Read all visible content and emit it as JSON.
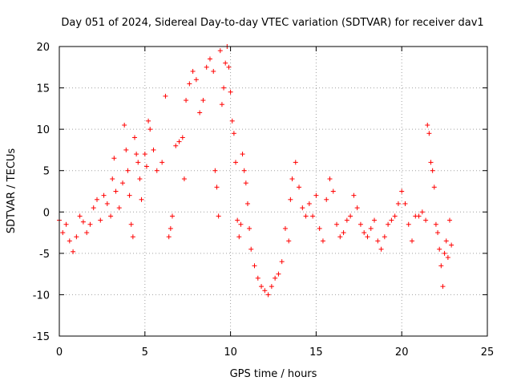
{
  "chart_data": {
    "type": "scatter",
    "title": "Day 051 of 2024, Sidereal Day-to-day VTEC variation (SDTVAR) for receiver dav1",
    "xlabel": "GPS time / hours",
    "ylabel": "SDTVAR / TECUs",
    "xlim": [
      0,
      25
    ],
    "ylim": [
      -15,
      20
    ],
    "x_ticks": [
      0,
      5,
      10,
      15,
      20,
      25
    ],
    "y_ticks": [
      -15,
      -10,
      -5,
      0,
      5,
      10,
      15,
      20
    ],
    "x_tick_labels": [
      "0",
      "5",
      "10",
      "15",
      "20",
      "25"
    ],
    "y_tick_labels": [
      "-15",
      "-10",
      "-5",
      "0",
      "5",
      "10",
      "15",
      "20"
    ],
    "grid": true,
    "marker": "+",
    "marker_color": "#ff0000",
    "series": [
      {
        "name": "SDTVAR",
        "points": [
          [
            0.0,
            -1.0
          ],
          [
            0.2,
            -2.5
          ],
          [
            0.4,
            -1.5
          ],
          [
            0.6,
            -3.5
          ],
          [
            0.8,
            -4.8
          ],
          [
            1.0,
            -3.0
          ],
          [
            1.2,
            -0.5
          ],
          [
            1.4,
            -1.2
          ],
          [
            1.6,
            -2.5
          ],
          [
            1.8,
            -1.5
          ],
          [
            2.0,
            0.5
          ],
          [
            2.2,
            1.5
          ],
          [
            2.4,
            -1.0
          ],
          [
            2.6,
            2.0
          ],
          [
            2.8,
            1.0
          ],
          [
            3.0,
            -0.5
          ],
          [
            3.1,
            4.0
          ],
          [
            3.2,
            6.5
          ],
          [
            3.3,
            2.5
          ],
          [
            3.5,
            0.5
          ],
          [
            3.7,
            3.5
          ],
          [
            3.8,
            10.5
          ],
          [
            3.9,
            7.5
          ],
          [
            4.0,
            5.0
          ],
          [
            4.1,
            2.0
          ],
          [
            4.2,
            -1.5
          ],
          [
            4.3,
            -3.0
          ],
          [
            4.4,
            9.0
          ],
          [
            4.5,
            7.0
          ],
          [
            4.6,
            6.0
          ],
          [
            4.7,
            4.0
          ],
          [
            4.8,
            1.5
          ],
          [
            5.0,
            7.0
          ],
          [
            5.1,
            5.5
          ],
          [
            5.2,
            11.0
          ],
          [
            5.3,
            10.0
          ],
          [
            5.5,
            7.5
          ],
          [
            5.7,
            5.0
          ],
          [
            6.0,
            6.0
          ],
          [
            6.2,
            14.0
          ],
          [
            6.4,
            -3.0
          ],
          [
            6.5,
            -2.0
          ],
          [
            6.6,
            -0.5
          ],
          [
            6.8,
            8.0
          ],
          [
            7.0,
            8.5
          ],
          [
            7.2,
            9.0
          ],
          [
            7.3,
            4.0
          ],
          [
            7.4,
            13.5
          ],
          [
            7.6,
            15.5
          ],
          [
            7.8,
            17.0
          ],
          [
            8.0,
            16.0
          ],
          [
            8.2,
            12.0
          ],
          [
            8.4,
            13.5
          ],
          [
            8.6,
            17.5
          ],
          [
            8.8,
            18.5
          ],
          [
            9.0,
            17.0
          ],
          [
            9.1,
            5.0
          ],
          [
            9.2,
            3.0
          ],
          [
            9.3,
            -0.5
          ],
          [
            9.4,
            19.5
          ],
          [
            9.5,
            13.0
          ],
          [
            9.6,
            15.0
          ],
          [
            9.7,
            18.0
          ],
          [
            9.8,
            20.0
          ],
          [
            9.9,
            17.5
          ],
          [
            10.0,
            14.5
          ],
          [
            10.1,
            11.0
          ],
          [
            10.2,
            9.5
          ],
          [
            10.3,
            6.0
          ],
          [
            10.4,
            -1.0
          ],
          [
            10.5,
            -3.0
          ],
          [
            10.6,
            -1.5
          ],
          [
            10.7,
            7.0
          ],
          [
            10.8,
            5.0
          ],
          [
            10.9,
            3.5
          ],
          [
            11.0,
            1.0
          ],
          [
            11.1,
            -2.0
          ],
          [
            11.2,
            -4.5
          ],
          [
            11.4,
            -6.5
          ],
          [
            11.6,
            -8.0
          ],
          [
            11.8,
            -9.0
          ],
          [
            12.0,
            -9.5
          ],
          [
            12.2,
            -10.0
          ],
          [
            12.4,
            -9.0
          ],
          [
            12.6,
            -8.0
          ],
          [
            12.8,
            -7.5
          ],
          [
            13.0,
            -6.0
          ],
          [
            13.2,
            -2.0
          ],
          [
            13.4,
            -3.5
          ],
          [
            13.5,
            1.5
          ],
          [
            13.6,
            4.0
          ],
          [
            13.8,
            6.0
          ],
          [
            14.0,
            3.0
          ],
          [
            14.2,
            0.5
          ],
          [
            14.4,
            -0.5
          ],
          [
            14.6,
            1.0
          ],
          [
            14.8,
            -0.5
          ],
          [
            15.0,
            2.0
          ],
          [
            15.2,
            -2.0
          ],
          [
            15.4,
            -3.5
          ],
          [
            15.6,
            1.5
          ],
          [
            15.8,
            4.0
          ],
          [
            16.0,
            2.5
          ],
          [
            16.2,
            -1.5
          ],
          [
            16.4,
            -3.0
          ],
          [
            16.6,
            -2.5
          ],
          [
            16.8,
            -1.0
          ],
          [
            17.0,
            -0.5
          ],
          [
            17.2,
            2.0
          ],
          [
            17.4,
            0.5
          ],
          [
            17.6,
            -1.5
          ],
          [
            17.8,
            -2.5
          ],
          [
            18.0,
            -3.0
          ],
          [
            18.2,
            -2.0
          ],
          [
            18.4,
            -1.0
          ],
          [
            18.6,
            -3.5
          ],
          [
            18.8,
            -4.5
          ],
          [
            19.0,
            -3.0
          ],
          [
            19.2,
            -1.5
          ],
          [
            19.4,
            -1.0
          ],
          [
            19.6,
            -0.5
          ],
          [
            19.8,
            1.0
          ],
          [
            20.0,
            2.5
          ],
          [
            20.2,
            1.0
          ],
          [
            20.4,
            -1.5
          ],
          [
            20.6,
            -3.5
          ],
          [
            20.8,
            -0.5
          ],
          [
            21.0,
            -0.5
          ],
          [
            21.2,
            0.0
          ],
          [
            21.4,
            -1.0
          ],
          [
            21.5,
            10.5
          ],
          [
            21.6,
            9.5
          ],
          [
            21.7,
            6.0
          ],
          [
            21.8,
            5.0
          ],
          [
            21.9,
            3.0
          ],
          [
            22.0,
            -1.5
          ],
          [
            22.1,
            -2.5
          ],
          [
            22.2,
            -4.5
          ],
          [
            22.3,
            -6.5
          ],
          [
            22.4,
            -9.0
          ],
          [
            22.5,
            -5.0
          ],
          [
            22.6,
            -3.5
          ],
          [
            22.7,
            -5.5
          ],
          [
            22.8,
            -1.0
          ],
          [
            22.9,
            -4.0
          ]
        ]
      }
    ]
  }
}
